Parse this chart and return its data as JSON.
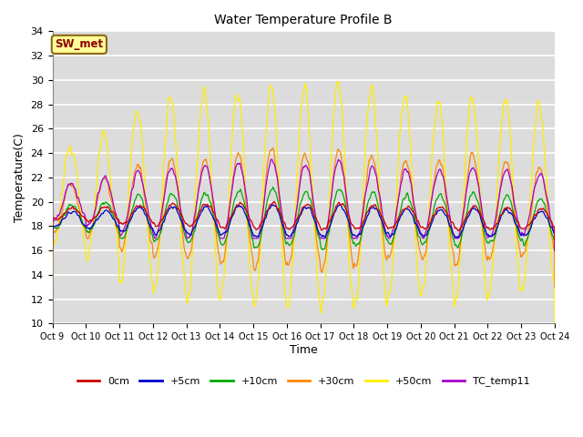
{
  "title": "Water Temperature Profile B",
  "xlabel": "Time",
  "ylabel": "Temperature(C)",
  "ylim": [
    10,
    34
  ],
  "yticks": [
    10,
    12,
    14,
    16,
    18,
    20,
    22,
    24,
    26,
    28,
    30,
    32,
    34
  ],
  "x_labels": [
    "Oct 9",
    "Oct 10",
    "Oct 11",
    "Oct 12",
    "Oct 13",
    "Oct 14",
    "Oct 15",
    "Oct 16",
    "Oct 17",
    "Oct 18",
    "Oct 19",
    "Oct 20",
    "Oct 21",
    "Oct 22",
    "Oct 23",
    "Oct 24"
  ],
  "annotation_text": "SW_met",
  "annotation_color": "#8B0000",
  "annotation_bg": "#FFFF99",
  "annotation_border": "#8B6914",
  "bg_color": "#DCDCDC",
  "series_colors": {
    "0cm": "#CC0000",
    "+5cm": "#0000CC",
    "+10cm": "#00AA00",
    "+30cm": "#FF8800",
    "+50cm": "#FFEE00",
    "TC_temp11": "#AA00CC"
  },
  "legend_colors": [
    "#CC0000",
    "#0000CC",
    "#00AA00",
    "#FF8800",
    "#FFEE00",
    "#AA00CC"
  ],
  "legend_labels": [
    "0cm",
    "+5cm",
    "+10cm",
    "+30cm",
    "+50cm",
    "TC_temp11"
  ],
  "num_days": 15,
  "points_per_day": 144,
  "figwidth": 6.4,
  "figheight": 4.8,
  "dpi": 100
}
